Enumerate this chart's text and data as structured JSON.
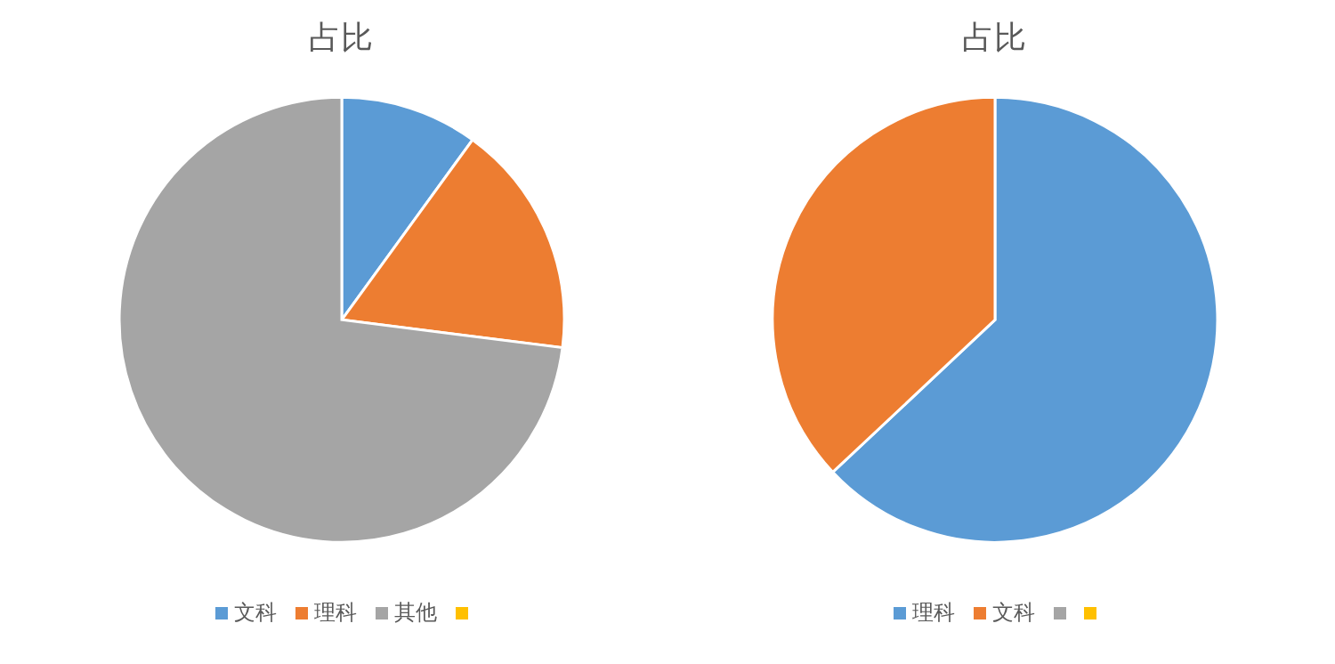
{
  "chart_data": [
    {
      "type": "pie",
      "title": "占比",
      "categories": [
        "文科",
        "理科",
        "其他",
        null
      ],
      "values": [
        10,
        17,
        73,
        0
      ],
      "colors": [
        "#5b9bd5",
        "#ed7d31",
        "#a5a5a5",
        "#ffc000"
      ],
      "legend": "bottom"
    },
    {
      "type": "pie",
      "title": "占比",
      "categories": [
        "理科",
        "文科",
        null,
        null
      ],
      "values": [
        63,
        37,
        0,
        0
      ],
      "colors": [
        "#5b9bd5",
        "#ed7d31",
        "#a5a5a5",
        "#ffc000"
      ],
      "legend": "bottom"
    }
  ]
}
